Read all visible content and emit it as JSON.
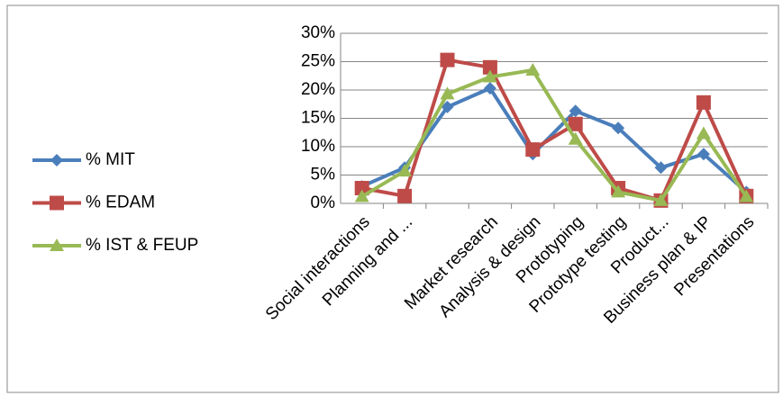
{
  "chart_data": {
    "type": "line",
    "categories": [
      "Social interactions",
      "Planning and ...",
      null,
      "Market research",
      "Analysis & design",
      "Prototyping",
      "Prototype testing",
      "Product...",
      "Business plan & IP",
      "Presentations"
    ],
    "series": [
      {
        "name": "% MIT",
        "color": "#4a7ebb",
        "marker": "diamond",
        "values": [
          3,
          6.3,
          17,
          20.3,
          8.7,
          16.3,
          13.3,
          6.3,
          8.7,
          2
        ]
      },
      {
        "name": "% EDAM",
        "color": "#be4b48",
        "marker": "square",
        "values": [
          2.7,
          1.3,
          25.3,
          24,
          9.5,
          14,
          2.7,
          0.5,
          17.8,
          1.3
        ]
      },
      {
        "name": "% IST & FEUP",
        "color": "#98b954",
        "marker": "triangle",
        "values": [
          1.2,
          5.7,
          19.3,
          22.3,
          23.5,
          11.3,
          2,
          0.5,
          12.3,
          1.2
        ]
      }
    ],
    "ylim": [
      0,
      30
    ],
    "yticks": [
      {
        "value": 0,
        "label": "0%"
      },
      {
        "value": 5,
        "label": "5%"
      },
      {
        "value": 10,
        "label": "10%"
      },
      {
        "value": 15,
        "label": "15%"
      },
      {
        "value": 20,
        "label": "20%"
      },
      {
        "value": 25,
        "label": "25%"
      },
      {
        "value": 30,
        "label": "30%"
      }
    ],
    "grid": true,
    "legend": "left"
  }
}
